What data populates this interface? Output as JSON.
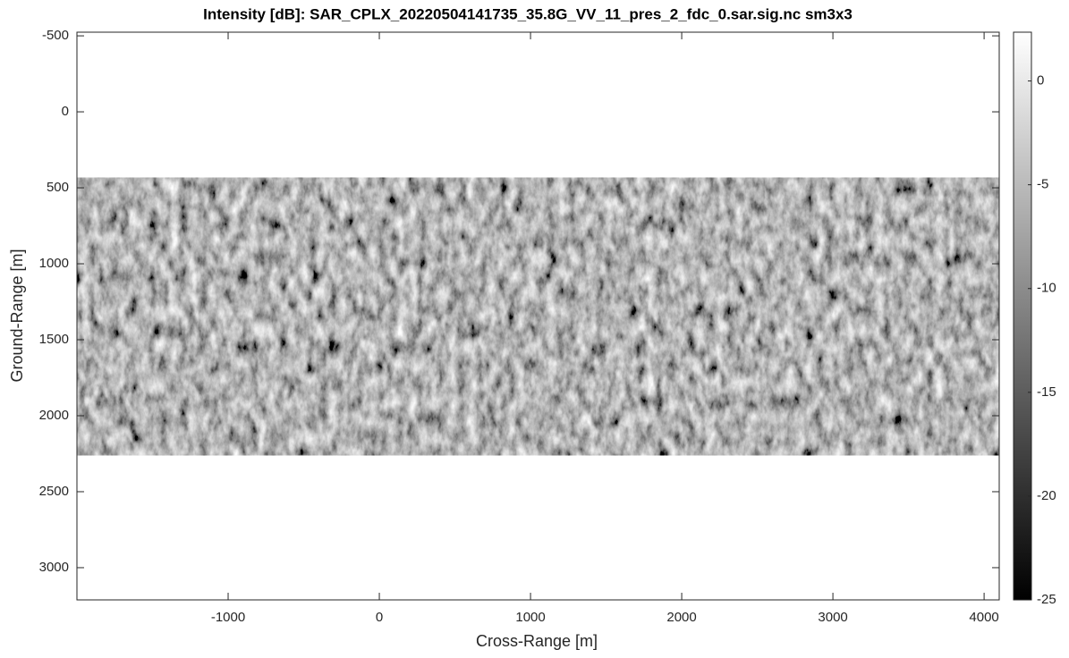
{
  "chart_data": {
    "type": "image",
    "title": "Intensity [dB]: SAR_CPLX_20220504141735_35.8G_VV_11_pres_2_fdc_0.sar.sig.nc sm3x3",
    "x_label": "Cross-Range [m]",
    "y_label": "Ground-Range [m]",
    "xlim": [
      -2000,
      4100
    ],
    "xticks": [
      -1000,
      0,
      1000,
      2000,
      3000,
      4000
    ],
    "ylim": [
      -524,
      3212
    ],
    "yticks": [
      -500,
      0,
      500,
      1000,
      1500,
      2000,
      2500,
      3000
    ],
    "y_reversed": true,
    "image_y_range": [
      435,
      2260
    ],
    "colormap": "gray",
    "clim": [
      -25,
      2.35
    ],
    "cticks": [
      0,
      -5,
      -10,
      -15,
      -20,
      -25
    ]
  }
}
